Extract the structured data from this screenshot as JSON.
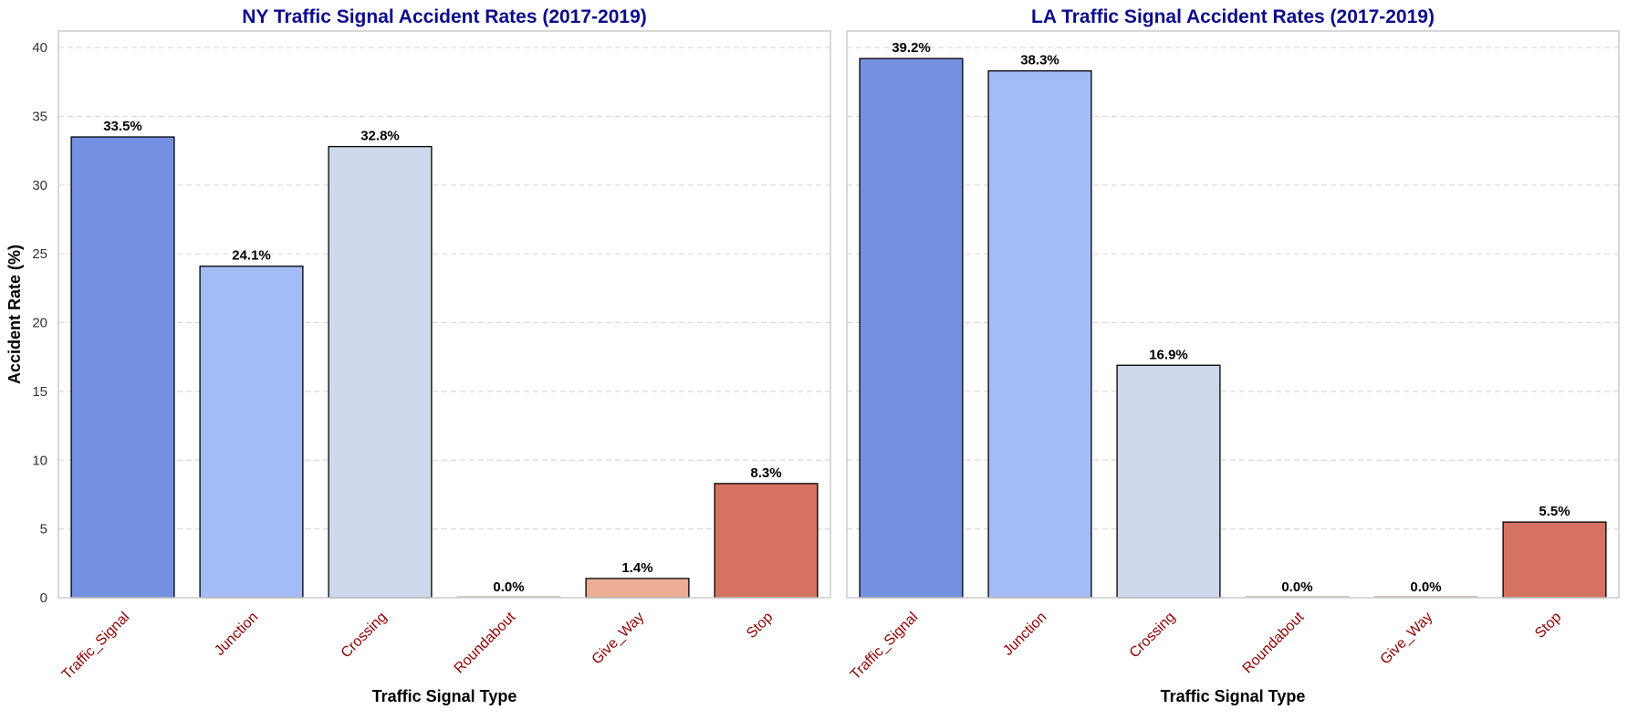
{
  "chart_data": [
    {
      "type": "bar",
      "title": "NY Traffic Signal Accident Rates (2017-2019)",
      "xlabel": "Traffic Signal Type",
      "ylabel": "Accident Rate (%)",
      "categories": [
        "Traffic_Signal",
        "Junction",
        "Crossing",
        "Roundabout",
        "Give_Way",
        "Stop"
      ],
      "values": [
        33.5,
        24.1,
        32.8,
        0.0,
        1.4,
        8.3
      ],
      "value_labels": [
        "33.5%",
        "24.1%",
        "32.8%",
        "0.0%",
        "1.4%",
        "8.3%"
      ],
      "ylim": [
        0,
        41.2
      ],
      "yticks": [
        0,
        5,
        10,
        15,
        20,
        25,
        30,
        35,
        40
      ],
      "grid": "y-dashed",
      "bar_colors": [
        "#7491e1",
        "#a4bcf6",
        "#cdd8ec",
        "#f0d3c5",
        "#ecad94",
        "#d57262"
      ]
    },
    {
      "type": "bar",
      "title": "LA Traffic Signal Accident Rates (2017-2019)",
      "xlabel": "Traffic Signal Type",
      "ylabel": "",
      "categories": [
        "Traffic_Signal",
        "Junction",
        "Crossing",
        "Roundabout",
        "Give_Way",
        "Stop"
      ],
      "values": [
        39.2,
        38.3,
        16.9,
        0.0,
        0.0,
        5.5
      ],
      "value_labels": [
        "39.2%",
        "38.3%",
        "16.9%",
        "0.0%",
        "0.0%",
        "5.5%"
      ],
      "ylim": [
        0,
        41.2
      ],
      "yticks": [
        0,
        5,
        10,
        15,
        20,
        25,
        30,
        35,
        40
      ],
      "grid": "y-dashed",
      "bar_colors": [
        "#7491e1",
        "#a4bcf6",
        "#cdd8ec",
        "#f0d3c5",
        "#ecad94",
        "#d57262"
      ]
    }
  ],
  "colors": {
    "title": "#0c0c8c",
    "tick_label_x": "#8b0000",
    "grid": "#d9d9d9",
    "spine": "#cccccc",
    "bar_edge": "#000000"
  }
}
